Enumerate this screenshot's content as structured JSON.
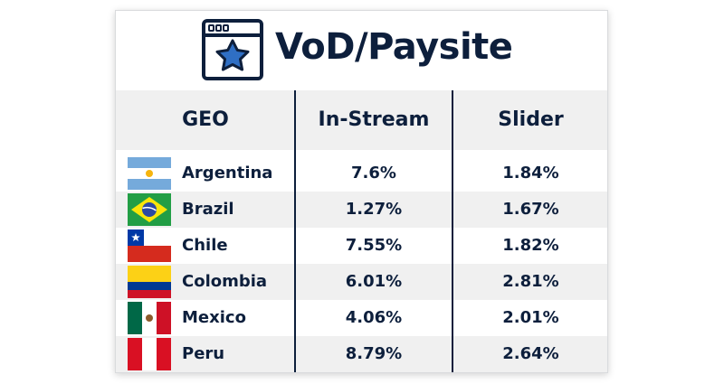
{
  "title": "VoD/Paysite",
  "title_icon": "browser-window-star-icon",
  "columns": [
    "GEO",
    "In-Stream",
    "Slider"
  ],
  "rows": [
    {
      "country": "Argentina",
      "flag": "argentina-flag-icon",
      "in_stream": "7.6%",
      "slider": "1.84%"
    },
    {
      "country": "Brazil",
      "flag": "brazil-flag-icon",
      "in_stream": "1.27%",
      "slider": "1.67%"
    },
    {
      "country": "Chile",
      "flag": "chile-flag-icon",
      "in_stream": "7.55%",
      "slider": "1.82%"
    },
    {
      "country": "Colombia",
      "flag": "colombia-flag-icon",
      "in_stream": "6.01%",
      "slider": "2.81%"
    },
    {
      "country": "Mexico",
      "flag": "mexico-flag-icon",
      "in_stream": "4.06%",
      "slider": "2.01%"
    },
    {
      "country": "Peru",
      "flag": "peru-flag-icon",
      "in_stream": "8.79%",
      "slider": "2.64%"
    }
  ],
  "colors": {
    "text": "#0d1f3c",
    "star": "#2f6fc4",
    "stripe": "#f0f0f0",
    "divider": "#0d1f3c"
  }
}
